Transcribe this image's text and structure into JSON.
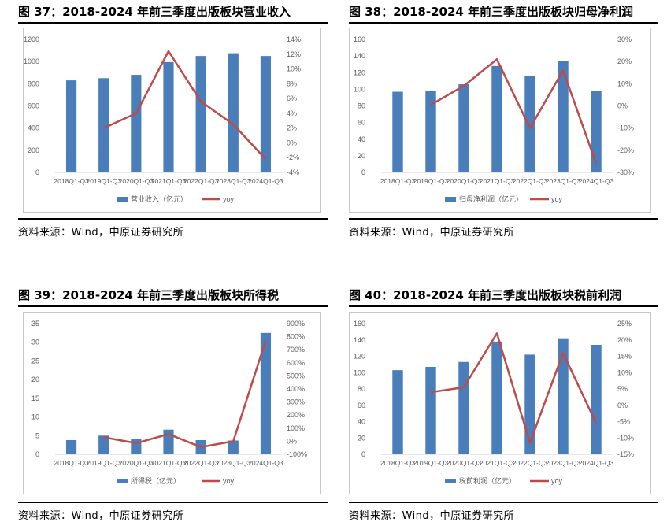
{
  "chart_data": [
    {
      "type": "bar",
      "figure_title": "图 37：2018-2024 年前三季度出版板块营业收入",
      "categories": [
        "2018Q1-Q3",
        "2019Q1-Q3",
        "2020Q1-Q3",
        "2021Q1-Q3",
        "2022Q1-Q3",
        "2023Q1-Q3",
        "2024Q1-Q3"
      ],
      "series": [
        {
          "name": "营业收入（亿元）",
          "kind": "bar",
          "axis": "left",
          "values": [
            830,
            850,
            880,
            995,
            1050,
            1075,
            1050
          ]
        },
        {
          "name": "yoy",
          "kind": "line",
          "axis": "right",
          "values": [
            null,
            2.0,
            4.0,
            12.4,
            5.6,
            2.5,
            -2.2
          ]
        }
      ],
      "left_axis": {
        "min": 0,
        "max": 1200,
        "step": 200,
        "ticks": [
          "0",
          "200",
          "400",
          "600",
          "800",
          "1000",
          "1200"
        ]
      },
      "right_axis": {
        "min": -4,
        "max": 14,
        "step": 2,
        "ticks": [
          "-4%",
          "-2%",
          "0%",
          "2%",
          "4%",
          "6%",
          "8%",
          "10%",
          "12%",
          "14%"
        ]
      },
      "source": "资料来源：Wind，中原证券研究所"
    },
    {
      "type": "bar",
      "figure_title": "图 38：2018-2024 年前三季度出版板块归母净利润",
      "categories": [
        "2018Q1-Q3",
        "2019Q1-Q3",
        "2020Q1-Q3",
        "2021Q1-Q3",
        "2022Q1-Q3",
        "2023Q1-Q3",
        "2024Q1-Q3"
      ],
      "series": [
        {
          "name": "归母净利润（亿元）",
          "kind": "bar",
          "axis": "left",
          "values": [
            97,
            98,
            106,
            128,
            116,
            134,
            98
          ]
        },
        {
          "name": "yoy",
          "kind": "line",
          "axis": "right",
          "values": [
            null,
            0.5,
            9,
            21,
            -10,
            16,
            -26
          ]
        }
      ],
      "left_axis": {
        "min": 0,
        "max": 160,
        "step": 20,
        "ticks": [
          "0",
          "20",
          "40",
          "60",
          "80",
          "100",
          "120",
          "140",
          "160"
        ]
      },
      "right_axis": {
        "min": -30,
        "max": 30,
        "step": 10,
        "ticks": [
          "-30%",
          "-20%",
          "-10%",
          "0%",
          "10%",
          "20%",
          "30%"
        ]
      },
      "source": "资料来源：Wind，中原证券研究所"
    },
    {
      "type": "bar",
      "figure_title": "图 39：2018-2024 年前三季度出版板块所得税",
      "categories": [
        "2018Q1-Q3",
        "2019Q1-Q3",
        "2020Q1-Q3",
        "2021Q1-Q3",
        "2022Q1-Q3",
        "2023Q1-Q3",
        "2024Q1-Q3"
      ],
      "series": [
        {
          "name": "所得税（亿元）",
          "kind": "bar",
          "axis": "left",
          "values": [
            3.8,
            5.0,
            4.2,
            6.6,
            3.8,
            3.7,
            32.5
          ]
        },
        {
          "name": "yoy",
          "kind": "line",
          "axis": "right",
          "values": [
            null,
            30,
            -15,
            55,
            -45,
            0,
            770
          ]
        }
      ],
      "left_axis": {
        "min": 0,
        "max": 35,
        "step": 5,
        "ticks": [
          "0",
          "5",
          "10",
          "15",
          "20",
          "25",
          "30",
          "35"
        ]
      },
      "right_axis": {
        "min": -100,
        "max": 900,
        "step": 100,
        "ticks": [
          "-100%",
          "0%",
          "100%",
          "200%",
          "300%",
          "400%",
          "500%",
          "600%",
          "700%",
          "800%",
          "900%"
        ]
      },
      "source": "资料来源：Wind，中原证券研究所"
    },
    {
      "type": "bar",
      "figure_title": "图 40：2018-2024 年前三季度出版板块税前利润",
      "categories": [
        "2018Q1-Q3",
        "2019Q1-Q3",
        "2020Q1-Q3",
        "2021Q1-Q3",
        "2022Q1-Q3",
        "2023Q1-Q3",
        "2024Q1-Q3"
      ],
      "series": [
        {
          "name": "税前利润（亿元）",
          "kind": "bar",
          "axis": "left",
          "values": [
            103,
            107,
            113,
            138,
            122,
            142,
            134
          ]
        },
        {
          "name": "yoy",
          "kind": "line",
          "axis": "right",
          "values": [
            null,
            4,
            5.5,
            22,
            -11.5,
            16,
            -5.5
          ]
        }
      ],
      "left_axis": {
        "min": 0,
        "max": 160,
        "step": 20,
        "ticks": [
          "0",
          "20",
          "40",
          "60",
          "80",
          "100",
          "120",
          "140",
          "160"
        ]
      },
      "right_axis": {
        "min": -15,
        "max": 25,
        "step": 5,
        "ticks": [
          "-15%",
          "-10%",
          "-5%",
          "0%",
          "5%",
          "10%",
          "15%",
          "20%",
          "25%"
        ]
      },
      "source": "资料来源：Wind，中原证券研究所"
    }
  ],
  "colors": {
    "bar": "#4a7ebb",
    "line": "#be4b48",
    "axis": "#d0d0d0",
    "tick_text": "#595959"
  }
}
